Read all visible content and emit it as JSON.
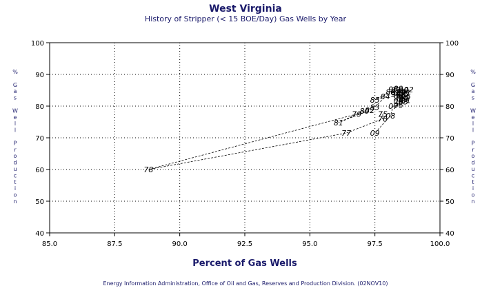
{
  "chart_data": {
    "type": "scatter",
    "title": "West Virginia",
    "subtitle": "History of Stripper (< 15 BOE/Day) Gas Wells by Year",
    "xlabel": "Percent of Gas Wells",
    "ylabel_chars": [
      "%",
      "",
      "G",
      "a",
      "s",
      "",
      "W",
      "e",
      "l",
      "l",
      "",
      "P",
      "r",
      "o",
      "d",
      "u",
      "c",
      "t",
      "i",
      "o",
      "n"
    ],
    "footer": "Energy Information Administration, Office of Oil and Gas, Reserves and Production Division. (02NOV10)",
    "xlim": [
      85.0,
      100.0
    ],
    "ylim": [
      40,
      100
    ],
    "xticks": [
      85.0,
      87.5,
      90.0,
      92.5,
      95.0,
      97.5,
      100.0
    ],
    "xtick_labels": [
      "85.0",
      "87.5",
      "90.0",
      "92.5",
      "95.0",
      "97.5",
      "100.0"
    ],
    "yticks": [
      40,
      50,
      60,
      70,
      80,
      90,
      100
    ],
    "ytick_labels": [
      "40",
      "50",
      "60",
      "70",
      "80",
      "90",
      "100"
    ],
    "grid": true,
    "line_style": "dashed",
    "points": [
      {
        "label": "78",
        "x": 88.8,
        "y": 60.0
      },
      {
        "label": "81",
        "x": 96.1,
        "y": 74.8
      },
      {
        "label": "79",
        "x": 96.8,
        "y": 77.5
      },
      {
        "label": "77",
        "x": 96.4,
        "y": 71.5
      },
      {
        "label": "80",
        "x": 97.1,
        "y": 78.5
      },
      {
        "label": "82",
        "x": 97.3,
        "y": 78.7
      },
      {
        "label": "83",
        "x": 97.5,
        "y": 79.7
      },
      {
        "label": "85",
        "x": 97.5,
        "y": 82.0
      },
      {
        "label": "76",
        "x": 97.8,
        "y": 76.0
      },
      {
        "label": "75",
        "x": 97.8,
        "y": 77.5
      },
      {
        "label": "09",
        "x": 97.5,
        "y": 71.5
      },
      {
        "label": "08",
        "x": 98.1,
        "y": 77.0
      },
      {
        "label": "07",
        "x": 98.2,
        "y": 80.0
      },
      {
        "label": "06",
        "x": 98.4,
        "y": 80.3
      },
      {
        "label": "05",
        "x": 98.5,
        "y": 81.6
      },
      {
        "label": "84",
        "x": 97.9,
        "y": 83.0
      },
      {
        "label": "86",
        "x": 98.1,
        "y": 84.5
      },
      {
        "label": "87",
        "x": 98.3,
        "y": 85.0
      },
      {
        "label": "88",
        "x": 98.5,
        "y": 84.5
      },
      {
        "label": "89",
        "x": 98.4,
        "y": 85.5
      },
      {
        "label": "90",
        "x": 98.6,
        "y": 85.0
      },
      {
        "label": "91",
        "x": 98.7,
        "y": 84.2
      },
      {
        "label": "92",
        "x": 98.8,
        "y": 85.2
      },
      {
        "label": "93",
        "x": 98.5,
        "y": 83.5
      },
      {
        "label": "94",
        "x": 98.6,
        "y": 82.5
      },
      {
        "label": "95",
        "x": 98.7,
        "y": 83.0
      },
      {
        "label": "96",
        "x": 98.3,
        "y": 83.7
      },
      {
        "label": "97",
        "x": 98.4,
        "y": 82.7
      },
      {
        "label": "98",
        "x": 98.6,
        "y": 84.0
      },
      {
        "label": "99",
        "x": 98.2,
        "y": 85.3
      },
      {
        "label": "00",
        "x": 98.6,
        "y": 82.2
      },
      {
        "label": "01",
        "x": 98.7,
        "y": 81.9
      },
      {
        "label": "02",
        "x": 98.3,
        "y": 84.3
      },
      {
        "label": "03",
        "x": 98.6,
        "y": 81.4
      },
      {
        "label": "04",
        "x": 98.4,
        "y": 81.7
      }
    ],
    "path_order": [
      "75",
      "76",
      "77",
      "78",
      "79",
      "80",
      "81",
      "82",
      "83",
      "84",
      "85",
      "86",
      "87",
      "88",
      "89",
      "90",
      "91",
      "92",
      "93",
      "94",
      "95",
      "96",
      "97",
      "98",
      "99",
      "00",
      "01",
      "02",
      "03",
      "04",
      "05",
      "06",
      "07",
      "08",
      "09"
    ],
    "colors": {
      "title": "#1b1b6b",
      "axis": "#000000",
      "grid": "#000000",
      "footer": "#1b1b6b"
    }
  }
}
